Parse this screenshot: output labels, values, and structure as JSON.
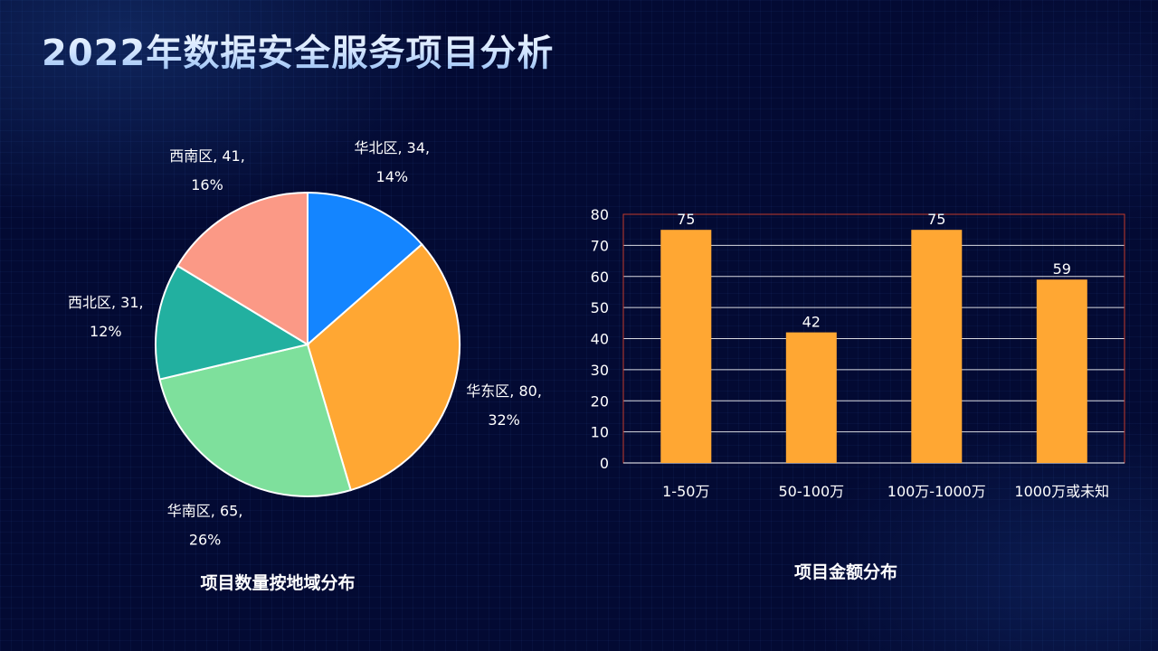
{
  "page": {
    "title": "2022年数据安全服务项目分析"
  },
  "chart_data": [
    {
      "type": "pie",
      "title": "项目数量按地域分布",
      "slices": [
        {
          "name": "华北区",
          "value": 34,
          "percent": "14%",
          "color": "#1485ff"
        },
        {
          "name": "华东区",
          "value": 80,
          "percent": "32%",
          "color": "#ffa733"
        },
        {
          "name": "华南区",
          "value": 65,
          "percent": "26%",
          "color": "#7ee09c"
        },
        {
          "name": "西北区",
          "value": 31,
          "percent": "12%",
          "color": "#22b0a0"
        },
        {
          "name": "西南区",
          "value": 41,
          "percent": "16%",
          "color": "#fb9986"
        }
      ],
      "slice_border_color": "#ffffff",
      "labels_outside": true
    },
    {
      "type": "bar",
      "title": "项目金额分布",
      "categories": [
        "1-50万",
        "50-100万",
        "100万-1000万",
        "1000万或未知"
      ],
      "values": [
        75,
        42,
        75,
        59
      ],
      "ylim": [
        0,
        80
      ],
      "yticks": [
        0,
        10,
        20,
        30,
        40,
        50,
        60,
        70,
        80
      ],
      "bar_color": "#ffa733",
      "grid": true,
      "gridline_color": "#ffffff",
      "plot_border_color": "#c0392b",
      "data_labels": true
    }
  ]
}
